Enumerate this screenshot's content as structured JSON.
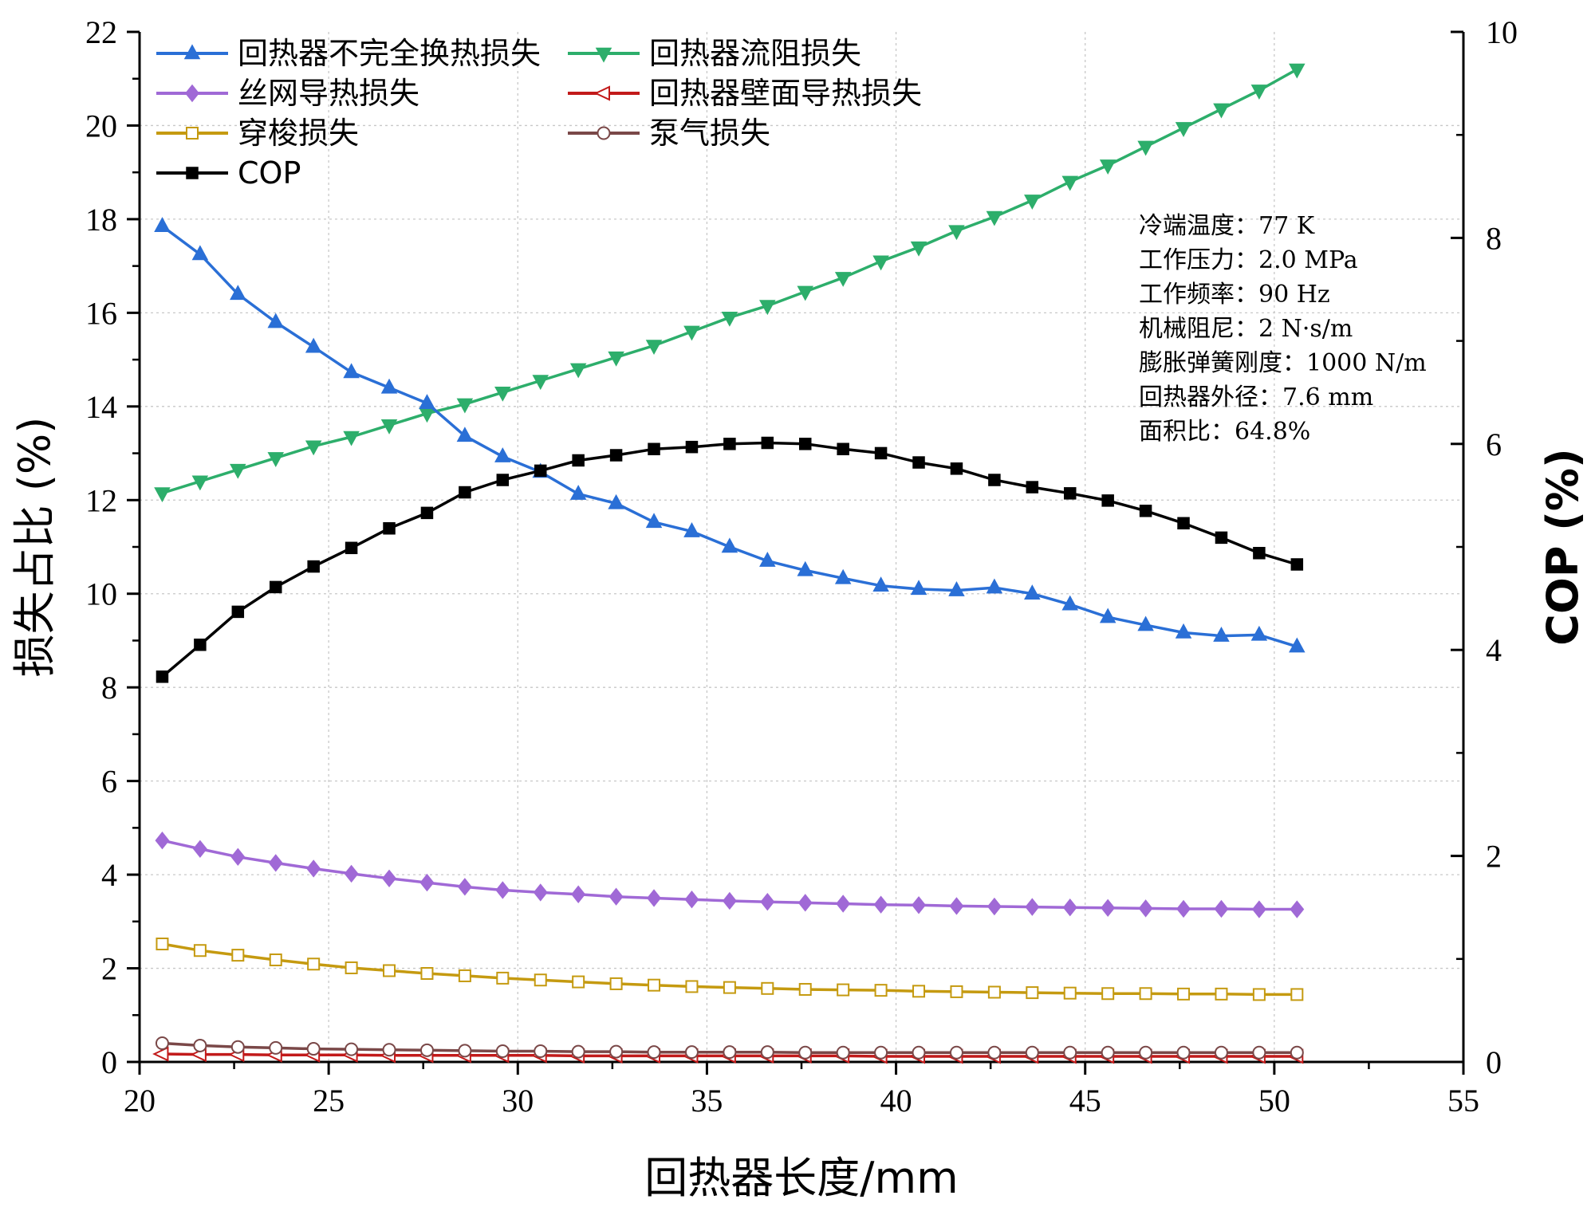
{
  "chart_data": {
    "type": "line",
    "xlabel": "回热器长度/mm",
    "ylabel_left": "损失占比 (%)",
    "ylabel_right": "COP (%)",
    "xlim": [
      20,
      55
    ],
    "ylim_left": [
      0,
      22
    ],
    "ylim_right": [
      0,
      10
    ],
    "x_ticks": [
      20,
      25,
      30,
      35,
      40,
      45,
      50,
      55
    ],
    "y_left_ticks": [
      0,
      2,
      4,
      6,
      8,
      10,
      12,
      14,
      16,
      18,
      20,
      22
    ],
    "y_right_ticks": [
      0,
      2,
      4,
      6,
      8,
      10
    ],
    "grid": true,
    "x": [
      20.6,
      21.6,
      22.6,
      23.6,
      24.6,
      25.6,
      26.6,
      27.6,
      28.6,
      29.6,
      30.6,
      31.6,
      32.6,
      33.6,
      34.6,
      35.6,
      36.6,
      37.6,
      38.6,
      39.6,
      40.6,
      41.6,
      42.6,
      43.6,
      44.6,
      45.6,
      46.6,
      47.6,
      48.6,
      49.6,
      50.6
    ],
    "series": [
      {
        "name": "回热器不完全换热损失",
        "axis": "left",
        "color": "#2a6fd6",
        "marker": "triangle-up",
        "values": [
          17.85,
          17.25,
          16.4,
          15.8,
          15.27,
          14.73,
          14.4,
          14.07,
          13.37,
          12.93,
          12.6,
          12.13,
          11.93,
          11.53,
          11.33,
          11.0,
          10.7,
          10.5,
          10.33,
          10.17,
          10.1,
          10.07,
          10.13,
          10.0,
          9.77,
          9.5,
          9.33,
          9.17,
          9.1,
          9.12,
          8.87
        ]
      },
      {
        "name": "回热器流阻损失",
        "axis": "left",
        "color": "#2dae6b",
        "marker": "triangle-down",
        "values": [
          12.15,
          12.4,
          12.65,
          12.9,
          13.15,
          13.35,
          13.6,
          13.85,
          14.05,
          14.3,
          14.55,
          14.8,
          15.05,
          15.3,
          15.6,
          15.9,
          16.15,
          16.45,
          16.75,
          17.1,
          17.4,
          17.75,
          18.05,
          18.4,
          18.8,
          19.15,
          19.55,
          19.95,
          20.35,
          20.75,
          21.2
        ]
      },
      {
        "name": "丝网导热损失",
        "axis": "left",
        "color": "#a069d6",
        "marker": "diamond",
        "values": [
          4.73,
          4.55,
          4.38,
          4.25,
          4.13,
          4.02,
          3.92,
          3.83,
          3.74,
          3.67,
          3.62,
          3.58,
          3.53,
          3.5,
          3.47,
          3.44,
          3.42,
          3.4,
          3.38,
          3.36,
          3.35,
          3.33,
          3.32,
          3.31,
          3.3,
          3.29,
          3.28,
          3.27,
          3.27,
          3.26,
          3.26
        ]
      },
      {
        "name": "回热器壁面导热损失",
        "axis": "left",
        "color": "#c21a1a",
        "marker": "triangle-left",
        "values": [
          0.17,
          0.16,
          0.16,
          0.15,
          0.15,
          0.15,
          0.14,
          0.14,
          0.14,
          0.14,
          0.14,
          0.13,
          0.13,
          0.13,
          0.13,
          0.13,
          0.13,
          0.13,
          0.13,
          0.12,
          0.12,
          0.12,
          0.12,
          0.12,
          0.12,
          0.12,
          0.12,
          0.12,
          0.12,
          0.12,
          0.12
        ]
      },
      {
        "name": "穿梭损失",
        "axis": "left",
        "color": "#c59a10",
        "marker": "square-open",
        "values": [
          2.52,
          2.38,
          2.28,
          2.18,
          2.09,
          2.01,
          1.95,
          1.89,
          1.84,
          1.79,
          1.75,
          1.71,
          1.67,
          1.64,
          1.61,
          1.59,
          1.57,
          1.55,
          1.54,
          1.53,
          1.51,
          1.5,
          1.49,
          1.48,
          1.47,
          1.46,
          1.46,
          1.45,
          1.45,
          1.44,
          1.44
        ]
      },
      {
        "name": "泵气损失",
        "axis": "left",
        "color": "#7a4848",
        "marker": "circle-open",
        "values": [
          0.4,
          0.35,
          0.32,
          0.3,
          0.28,
          0.27,
          0.26,
          0.25,
          0.24,
          0.23,
          0.23,
          0.22,
          0.22,
          0.21,
          0.21,
          0.21,
          0.21,
          0.2,
          0.2,
          0.2,
          0.2,
          0.2,
          0.2,
          0.2,
          0.2,
          0.2,
          0.2,
          0.2,
          0.2,
          0.2,
          0.2
        ]
      },
      {
        "name": "COP",
        "axis": "right",
        "color": "#000000",
        "marker": "square",
        "values": [
          3.74,
          4.05,
          4.37,
          4.61,
          4.81,
          4.99,
          5.18,
          5.33,
          5.53,
          5.65,
          5.74,
          5.84,
          5.89,
          5.95,
          5.97,
          6.0,
          6.01,
          6.0,
          5.95,
          5.91,
          5.82,
          5.76,
          5.65,
          5.58,
          5.52,
          5.45,
          5.35,
          5.23,
          5.09,
          4.94,
          4.83
        ]
      }
    ],
    "annotation": [
      "冷端温度：77 K",
      "工作压力：2.0 MPa",
      "工作频率：90 Hz",
      "机械阻尼：2 N·s/m",
      "膨胀弹簧刚度：1000 N/m",
      "回热器外径：7.6 mm",
      "面积比：64.8%"
    ]
  }
}
